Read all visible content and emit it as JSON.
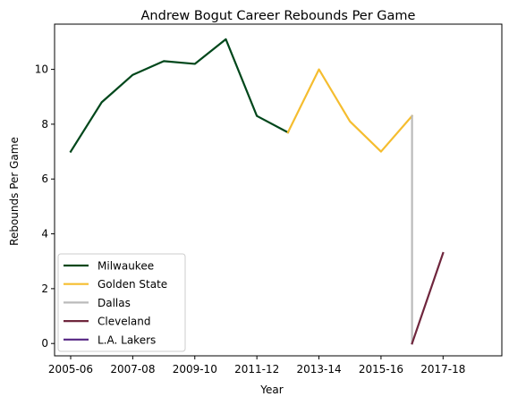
{
  "chart_data": {
    "type": "line",
    "title": "Andrew Bogut Career Rebounds Per Game",
    "xlabel": "Year",
    "ylabel": "Rebounds Per Game",
    "x_domain": [
      2005,
      2018
    ],
    "ylim": [
      -0.45,
      11.65
    ],
    "y_ticks": [
      0,
      2,
      4,
      6,
      8,
      10
    ],
    "x_ticks": [
      {
        "x": 2005,
        "label": "2005-06"
      },
      {
        "x": 2007,
        "label": "2007-08"
      },
      {
        "x": 2009,
        "label": "2009-10"
      },
      {
        "x": 2011,
        "label": "2011-12"
      },
      {
        "x": 2013,
        "label": "2013-14"
      },
      {
        "x": 2015,
        "label": "2015-16"
      },
      {
        "x": 2017,
        "label": "2017-18"
      }
    ],
    "grid": false,
    "legend_position": "lower left",
    "series": [
      {
        "name": "Milwaukee",
        "color": "#00471b",
        "points": [
          [
            2005,
            7.0
          ],
          [
            2006,
            8.8
          ],
          [
            2007,
            9.8
          ],
          [
            2008,
            10.3
          ],
          [
            2009,
            10.2
          ],
          [
            2010,
            11.1
          ],
          [
            2011,
            8.3
          ],
          [
            2012,
            7.7
          ]
        ]
      },
      {
        "name": "Golden State",
        "color": "#f5bd2f",
        "points": [
          [
            2012,
            7.7
          ],
          [
            2013,
            10.0
          ],
          [
            2014,
            8.1
          ],
          [
            2015,
            7.0
          ],
          [
            2016,
            8.3
          ]
        ]
      },
      {
        "name": "Dallas",
        "color": "#bbbbbb",
        "points": [
          [
            2016,
            8.3
          ],
          [
            2016,
            0.0
          ]
        ]
      },
      {
        "name": "Cleveland",
        "color": "#6f263d",
        "points": [
          [
            2016,
            0.0
          ],
          [
            2017,
            3.3
          ]
        ]
      },
      {
        "name": "L.A. Lakers",
        "color": "#552583",
        "points": []
      }
    ]
  }
}
